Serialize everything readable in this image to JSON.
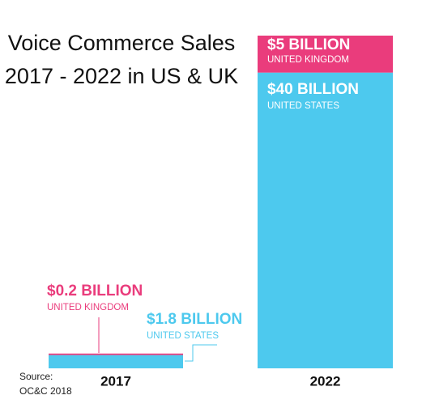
{
  "chart_data": {
    "type": "stacked-bar",
    "title": [
      "Voice Commerce Sales",
      "2017 - 2022 in US & UK"
    ],
    "source": [
      "Source:",
      "OC&C 2018"
    ],
    "categories": [
      "2017",
      "2022"
    ],
    "series": [
      {
        "name": "UNITED STATES",
        "color": "#4dc9ee",
        "values": [
          1.8,
          40
        ],
        "value_labels": [
          "$1.8 BILLION",
          "$40 BILLION"
        ]
      },
      {
        "name": "UNITED KINGDOM",
        "color": "#ea3c7c",
        "values": [
          0.2,
          5
        ],
        "value_labels": [
          "$0.2 BILLION",
          "$5 BILLION"
        ]
      }
    ]
  }
}
